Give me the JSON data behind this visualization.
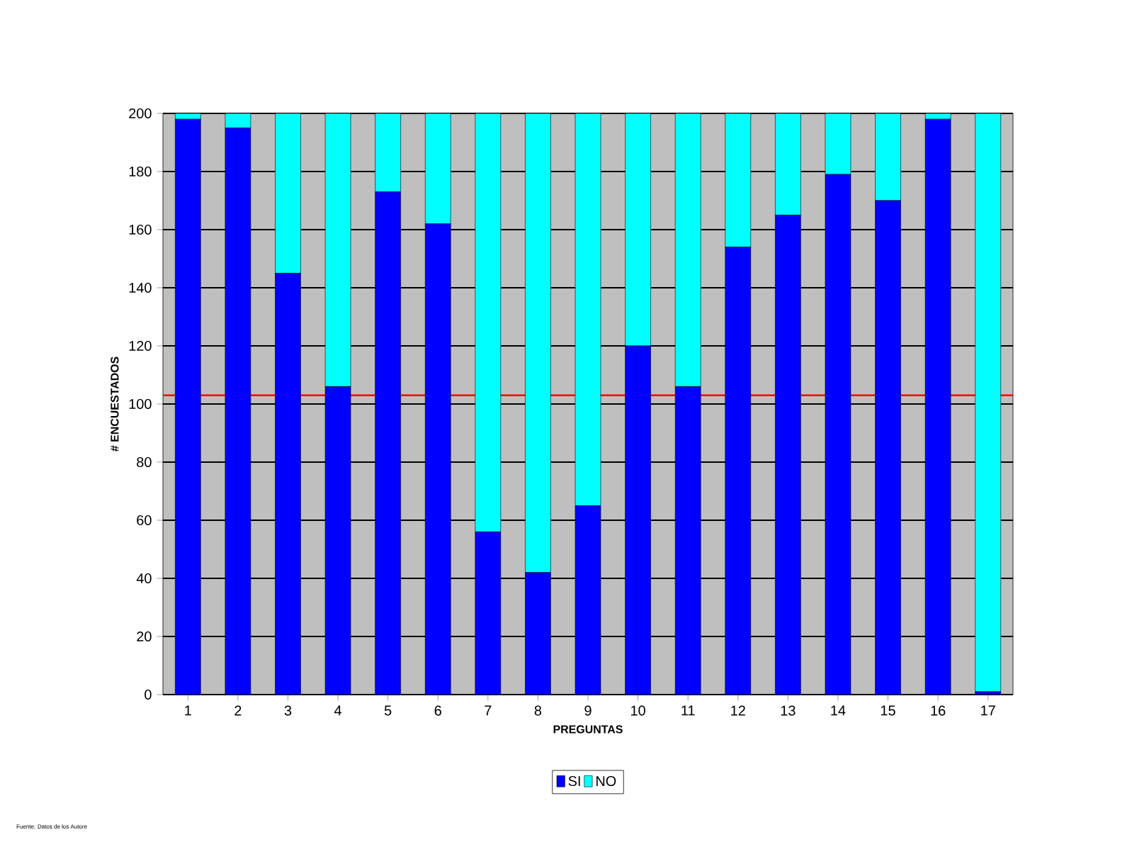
{
  "chart_data": {
    "type": "bar",
    "stacked": true,
    "xlabel": "PREGUNTAS",
    "ylabel": "# ENCUESTADOS",
    "categories": [
      "1",
      "2",
      "3",
      "4",
      "5",
      "6",
      "7",
      "8",
      "9",
      "10",
      "11",
      "12",
      "13",
      "14",
      "15",
      "16",
      "17"
    ],
    "series": [
      {
        "name": "SI",
        "color": "#0000ff",
        "values": [
          198,
          195,
          145,
          106,
          173,
          162,
          56,
          42,
          65,
          120,
          106,
          154,
          165,
          179,
          170,
          198,
          1
        ]
      },
      {
        "name": "NO",
        "color": "#00ffff",
        "values": [
          2,
          5,
          55,
          94,
          27,
          38,
          144,
          158,
          135,
          80,
          94,
          46,
          35,
          21,
          30,
          2,
          199
        ]
      }
    ],
    "ylim": [
      0,
      200
    ],
    "yticks": [
      0,
      20,
      40,
      60,
      80,
      100,
      120,
      140,
      160,
      180,
      200
    ],
    "grid": "y",
    "legend": "bottom",
    "ref_lines": [
      {
        "axis": "y",
        "value": 103,
        "color": "#ff0000"
      }
    ],
    "annotations": [
      "Fuente: Datos de los Autore"
    ]
  }
}
